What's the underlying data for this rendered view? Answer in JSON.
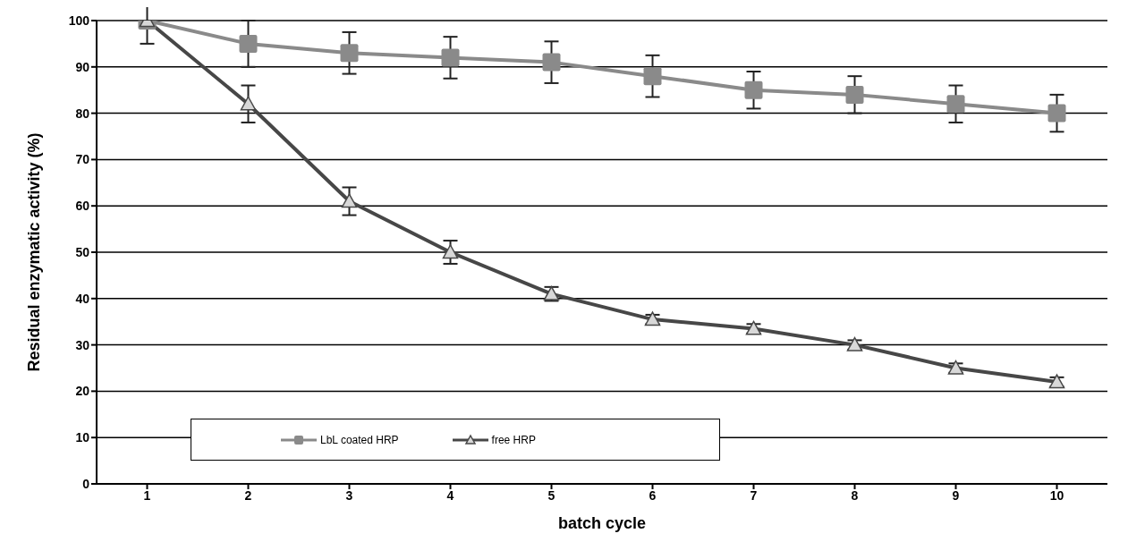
{
  "chart_data": {
    "type": "line",
    "xlabel": "batch cycle",
    "ylabel": "Residual enzymatic activity (%)",
    "categories": [
      "1",
      "2",
      "3",
      "4",
      "5",
      "6",
      "7",
      "8",
      "9",
      "10"
    ],
    "series": [
      {
        "name": "LbL coated HRP",
        "color": "#8a8a8a",
        "marker": "square",
        "values": [
          100,
          95,
          93,
          92,
          91,
          88,
          85,
          84,
          82,
          80
        ],
        "errors": [
          null,
          5,
          4.5,
          4.5,
          4.5,
          4.5,
          4,
          4,
          4,
          4
        ]
      },
      {
        "name": "free HRP",
        "color": "#474747",
        "marker": "triangle",
        "values": [
          100,
          82,
          61,
          50,
          41,
          35.5,
          33.5,
          30,
          25,
          22
        ],
        "errors": [
          5,
          4,
          3,
          2.5,
          1.5,
          1,
          1,
          1,
          1,
          1
        ]
      }
    ],
    "ylim": [
      0,
      100
    ],
    "yticks": [
      0,
      10,
      20,
      30,
      40,
      50,
      60,
      70,
      80,
      90,
      100
    ],
    "grid": "y",
    "legend": "bottom left"
  }
}
